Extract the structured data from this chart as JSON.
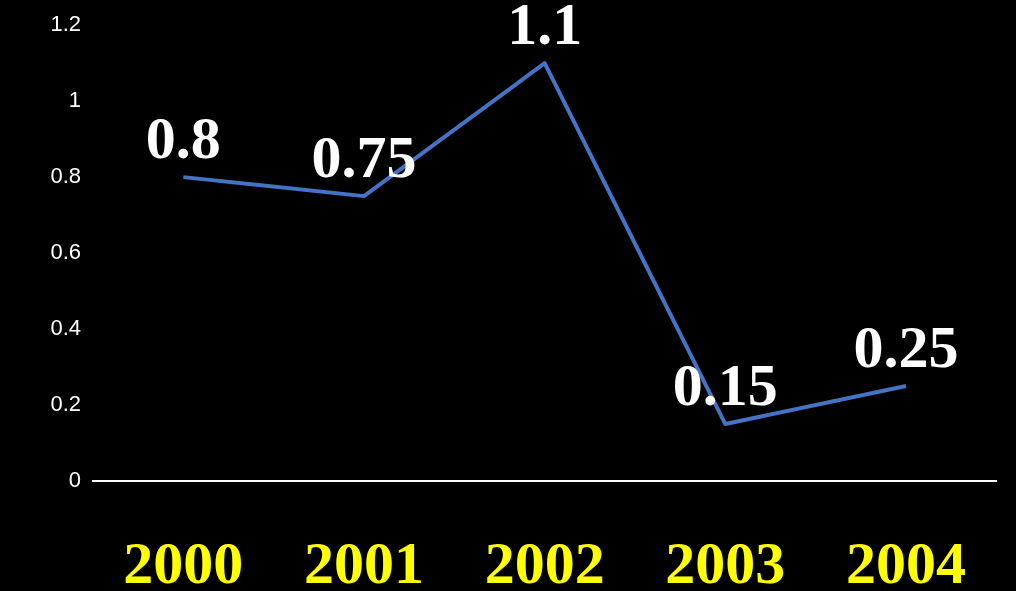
{
  "chart_data": {
    "type": "line",
    "categories": [
      "2000",
      "2001",
      "2002",
      "2003",
      "2004"
    ],
    "series": [
      {
        "color": "#4472c4",
        "values": [
          0.8,
          0.75,
          1.1,
          0.15,
          0.25
        ]
      }
    ],
    "ylim": [
      0,
      1.2
    ],
    "yticks": [
      0,
      0.2,
      0.4,
      0.6,
      0.8,
      1,
      1.2
    ],
    "legend": false,
    "marker": "none",
    "line_style": "solid",
    "data_labels": true
  }
}
